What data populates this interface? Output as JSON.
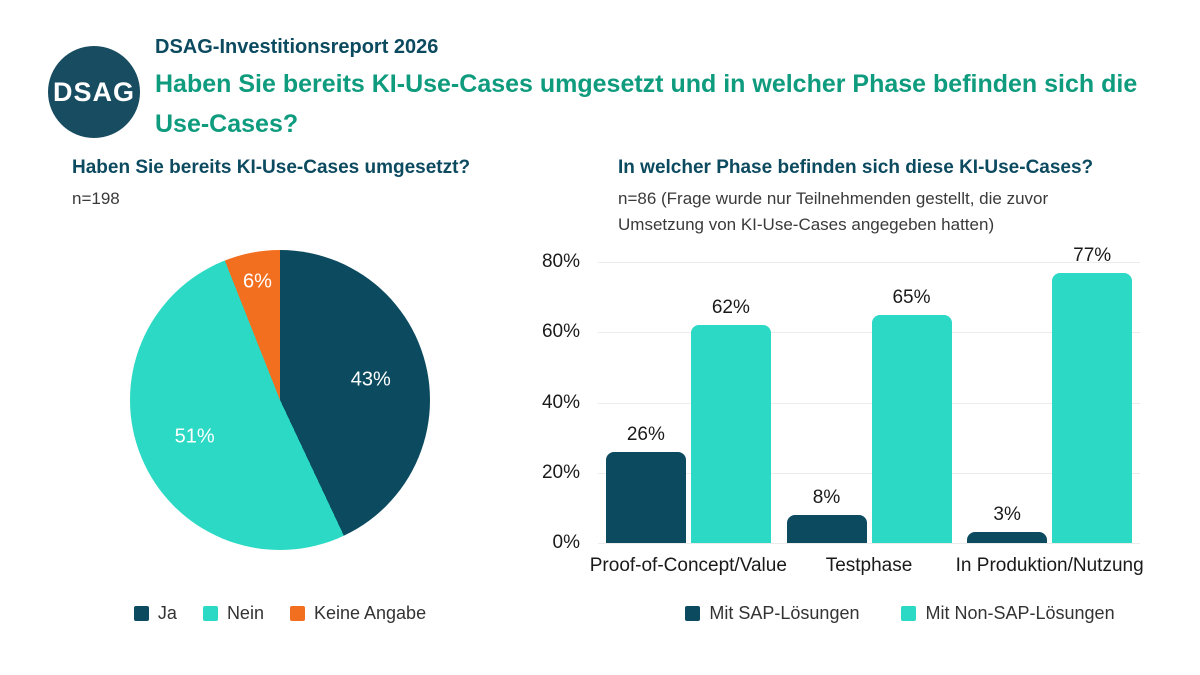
{
  "header": {
    "logo_text": "DSAG",
    "report_title": "DSAG-Investitionsreport 2026",
    "question_title": "Haben Sie bereits KI-Use-Cases umgesetzt und in welcher Phase befinden sich die Use-Cases?"
  },
  "colors": {
    "dark_teal": "#0C4A60",
    "turquoise": "#2BD9C4",
    "orange": "#F36F20",
    "green_title": "#0F9B7E",
    "grid": "#ECECEC",
    "text_dark": "#1A1A1A"
  },
  "chart_data": [
    {
      "type": "pie",
      "title": "Haben Sie bereits KI-Use-Cases umgesetzt?",
      "sample": "n=198",
      "unit": "%",
      "start_angle_deg": 0,
      "direction": "clockwise",
      "legend_position": "bottom",
      "slices": [
        {
          "label": "Ja",
          "value": 43,
          "color": "#0C4A60"
        },
        {
          "label": "Nein",
          "value": 51,
          "color": "#2BD9C4"
        },
        {
          "label": "Keine Angabe",
          "value": 6,
          "color": "#F36F20"
        }
      ]
    },
    {
      "type": "bar",
      "title": "In welcher Phase befinden sich diese KI-Use-Cases?",
      "sample": "n=86 (Frage wurde nur Teilnehmenden gestellt, die zuvor Umsetzung von KI-Use-Cases angegeben hatten)",
      "unit": "%",
      "categories": [
        "Proof-of-Concept/Value",
        "Testphase",
        "In Produktion/Nutzung"
      ],
      "series": [
        {
          "name": "Mit SAP-Lösungen",
          "color": "#0C4A60",
          "values": [
            26,
            8,
            3
          ]
        },
        {
          "name": "Mit Non-SAP-Lösungen",
          "color": "#2BD9C4",
          "values": [
            62,
            65,
            77
          ]
        }
      ],
      "ylim": [
        0,
        80
      ],
      "yticks": [
        {
          "label": "0%",
          "value": 0
        },
        {
          "label": "20%",
          "value": 20
        },
        {
          "label": "40%",
          "value": 40
        },
        {
          "label": "60%",
          "value": 60
        },
        {
          "label": "80%",
          "value": 80
        }
      ],
      "grid": true,
      "legend_position": "bottom"
    }
  ]
}
